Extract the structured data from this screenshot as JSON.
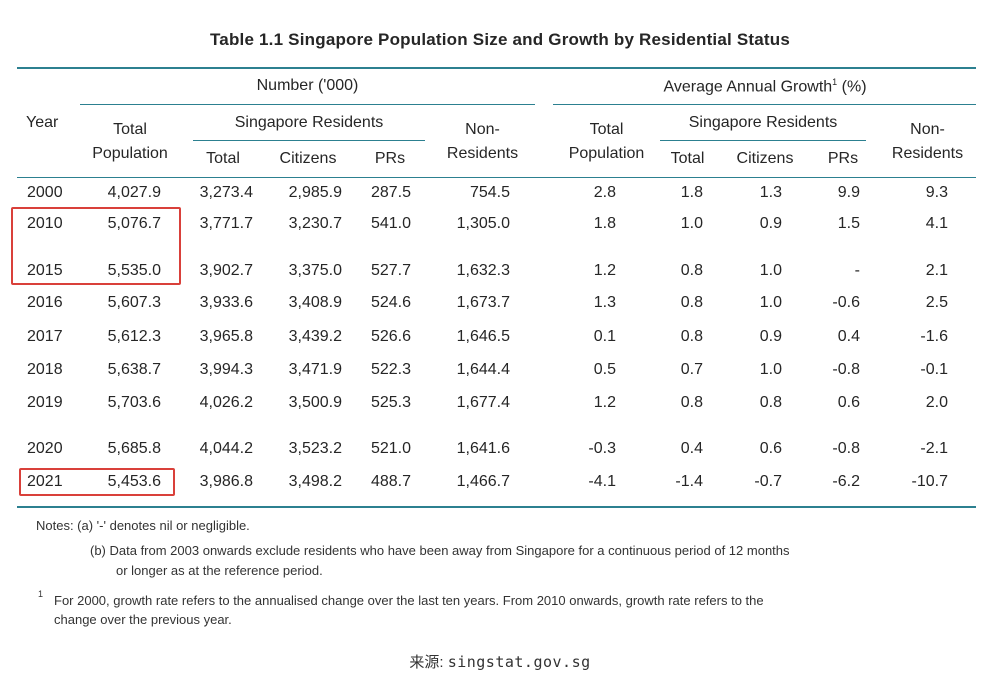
{
  "title": "Table 1.1  Singapore Population Size and Growth by Residential Status",
  "headers": {
    "year": "Year",
    "number_group": "Number ('000)",
    "growth_group": "Average Annual Growth",
    "growth_sup": "1",
    "growth_unit": " (%)",
    "total_population_1": "Total",
    "total_population_2": "Population",
    "sg_residents": "Singapore Residents",
    "total": "Total",
    "citizens": "Citizens",
    "prs": "PRs",
    "non_residents_1": "Non-",
    "non_residents_2": "Residents"
  },
  "rows": [
    {
      "year": "2000",
      "cells": [
        "4,027.9",
        "3,273.4",
        "2,985.9",
        "287.5",
        "754.5",
        "2.8",
        "1.8",
        "1.3",
        "9.9",
        "9.3"
      ]
    },
    {
      "year": "2010",
      "cells": [
        "5,076.7",
        "3,771.7",
        "3,230.7",
        "541.0",
        "1,305.0",
        "1.8",
        "1.0",
        "0.9",
        "1.5",
        "4.1"
      ]
    },
    {
      "year": "2015",
      "cells": [
        "5,535.0",
        "3,902.7",
        "3,375.0",
        "527.7",
        "1,632.3",
        "1.2",
        "0.8",
        "1.0",
        "-",
        "2.1"
      ]
    },
    {
      "year": "2016",
      "cells": [
        "5,607.3",
        "3,933.6",
        "3,408.9",
        "524.6",
        "1,673.7",
        "1.3",
        "0.8",
        "1.0",
        "-0.6",
        "2.5"
      ]
    },
    {
      "year": "2017",
      "cells": [
        "5,612.3",
        "3,965.8",
        "3,439.2",
        "526.6",
        "1,646.5",
        "0.1",
        "0.8",
        "0.9",
        "0.4",
        "-1.6"
      ]
    },
    {
      "year": "2018",
      "cells": [
        "5,638.7",
        "3,994.3",
        "3,471.9",
        "522.3",
        "1,644.4",
        "0.5",
        "0.7",
        "1.0",
        "-0.8",
        "-0.1"
      ]
    },
    {
      "year": "2019",
      "cells": [
        "5,703.6",
        "4,026.2",
        "3,500.9",
        "525.3",
        "1,677.4",
        "1.2",
        "0.8",
        "0.8",
        "0.6",
        "2.0"
      ]
    },
    {
      "year": "2020",
      "cells": [
        "5,685.8",
        "4,044.2",
        "3,523.2",
        "521.0",
        "1,641.6",
        "-0.3",
        "0.4",
        "0.6",
        "-0.8",
        "-2.1"
      ]
    },
    {
      "year": "2021",
      "cells": [
        "5,453.6",
        "3,986.8",
        "3,498.2",
        "488.7",
        "1,466.7",
        "-4.1",
        "-1.4",
        "-0.7",
        "-6.2",
        "-10.7"
      ]
    }
  ],
  "notes": {
    "a": "Notes: (a)  '-' denotes nil or negligible.",
    "b1": "(b)  Data from 2003 onwards exclude residents who have been away from Singapore for a continuous period of 12 months",
    "b2": "or longer as at the reference period.",
    "f_mark": "1",
    "f1": "For 2000, growth rate refers to the annualised change over the last ten years. From 2010 onwards, growth rate refers to the",
    "f2": "change over the previous year."
  },
  "source": {
    "label": "来源:",
    "text": "singstat.gov.sg"
  },
  "colors": {
    "rule": "#2c8090",
    "highlight": "#d9403a"
  }
}
